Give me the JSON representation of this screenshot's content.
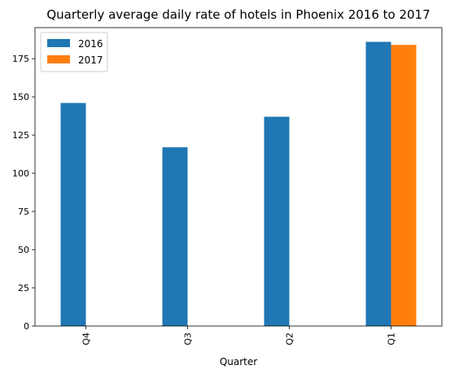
{
  "chart_data": {
    "type": "bar",
    "title": "Quarterly average daily rate of hotels in Phoenix 2016 to 2017",
    "xlabel": "Quarter",
    "ylabel": "",
    "categories": [
      "Q4",
      "Q3",
      "Q2",
      "Q1"
    ],
    "series": [
      {
        "name": "2016",
        "color": "#1f77b4",
        "values": [
          146,
          117,
          137,
          186
        ]
      },
      {
        "name": "2017",
        "color": "#ff7f0e",
        "values": [
          null,
          null,
          null,
          184
        ]
      }
    ],
    "ylim": [
      0,
      195.3
    ],
    "yticks": [
      0,
      25,
      50,
      75,
      100,
      125,
      150,
      175
    ],
    "grid": false,
    "legend": "top-left"
  }
}
